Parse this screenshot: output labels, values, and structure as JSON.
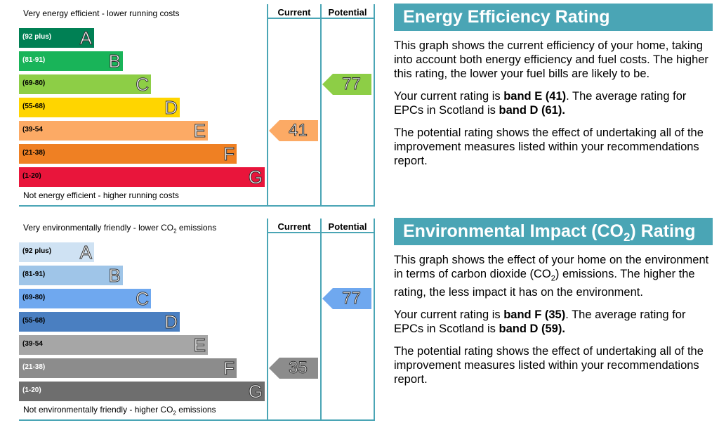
{
  "energy": {
    "top_label": "Very energy efficient - lower running costs",
    "bottom_label": "Not energy efficient - higher running costs",
    "col_current": "Current",
    "col_potential": "Potential",
    "bands": [
      {
        "range": "(92 plus)",
        "letter": "A",
        "color": "#008054",
        "range_color": "#ffffff"
      },
      {
        "range": "(81-91)",
        "letter": "B",
        "color": "#19b459",
        "range_color": "#ffffff"
      },
      {
        "range": "(69-80)",
        "letter": "C",
        "color": "#8dce46",
        "range_color": "#000000"
      },
      {
        "range": "(55-68)",
        "letter": "D",
        "color": "#ffd500",
        "range_color": "#000000"
      },
      {
        "range": "(39-54",
        "letter": "E",
        "color": "#fcaa65",
        "range_color": "#000000"
      },
      {
        "range": "(21-38)",
        "letter": "F",
        "color": "#ef8023",
        "range_color": "#000000"
      },
      {
        "range": "(1-20)",
        "letter": "G",
        "color": "#e9153b",
        "range_color": "#000000"
      }
    ],
    "current": {
      "value": "41",
      "band": "E",
      "color": "#fcaa65"
    },
    "potential": {
      "value": "77",
      "band": "C",
      "color": "#8dce46"
    },
    "title": "Energy Efficiency Rating",
    "p1": "This graph shows the current efficiency of your home, taking into account both energy efficiency and fuel costs. The higher this rating, the lower your fuel bills are likely to be.",
    "p2_a": "Your current rating is ",
    "p2_b": "band E (41)",
    "p2_c": ". The average rating for EPCs in Scotland is ",
    "p2_d": "band D (61).",
    "p3": "The potential rating shows the effect of undertaking all of the improvement measures listed within your recommendations report."
  },
  "environment": {
    "top_label_a": "Very environmentally friendly - lower CO",
    "top_label_sub": "2",
    "top_label_b": " emissions",
    "bottom_label_a": "Not environmentally friendly - higher CO",
    "bottom_label_sub": "2",
    "bottom_label_b": " emissions",
    "col_current": "Current",
    "col_potential": "Potential",
    "bands": [
      {
        "range": "(92 plus)",
        "letter": "A",
        "color": "#cfe2f3",
        "range_color": "#000000"
      },
      {
        "range": "(81-91)",
        "letter": "B",
        "color": "#9fc5e8",
        "range_color": "#000000"
      },
      {
        "range": "(69-80)",
        "letter": "C",
        "color": "#6fa8ef",
        "range_color": "#000000"
      },
      {
        "range": "(55-68)",
        "letter": "D",
        "color": "#4a7fc1",
        "range_color": "#000000"
      },
      {
        "range": "(39-54",
        "letter": "E",
        "color": "#a6a6a6",
        "range_color": "#000000"
      },
      {
        "range": "(21-38)",
        "letter": "F",
        "color": "#8c8c8c",
        "range_color": "#ffffff"
      },
      {
        "range": "(1-20)",
        "letter": "G",
        "color": "#6e6e6e",
        "range_color": "#ffffff"
      }
    ],
    "current": {
      "value": "35",
      "band": "F",
      "color": "#8c8c8c"
    },
    "potential": {
      "value": "77",
      "band": "C",
      "color": "#6fa8ef"
    },
    "title_a": "Environmental Impact (CO",
    "title_sub": "2",
    "title_b": ") Rating",
    "p1_a": "This graph shows the effect of your home on the environment in terms of carbon dioxide (CO",
    "p1_sub": "2",
    "p1_b": ") emissions. The higher the rating, the less impact it has on the environment.",
    "p2_a": "Your current rating is ",
    "p2_b": "band F (35)",
    "p2_c": ". The average rating for EPCs in Scotland is ",
    "p2_d": "band D (59).",
    "p3": "The potential rating shows the effect of undertaking all of the improvement measures listed within your recommendations report."
  }
}
